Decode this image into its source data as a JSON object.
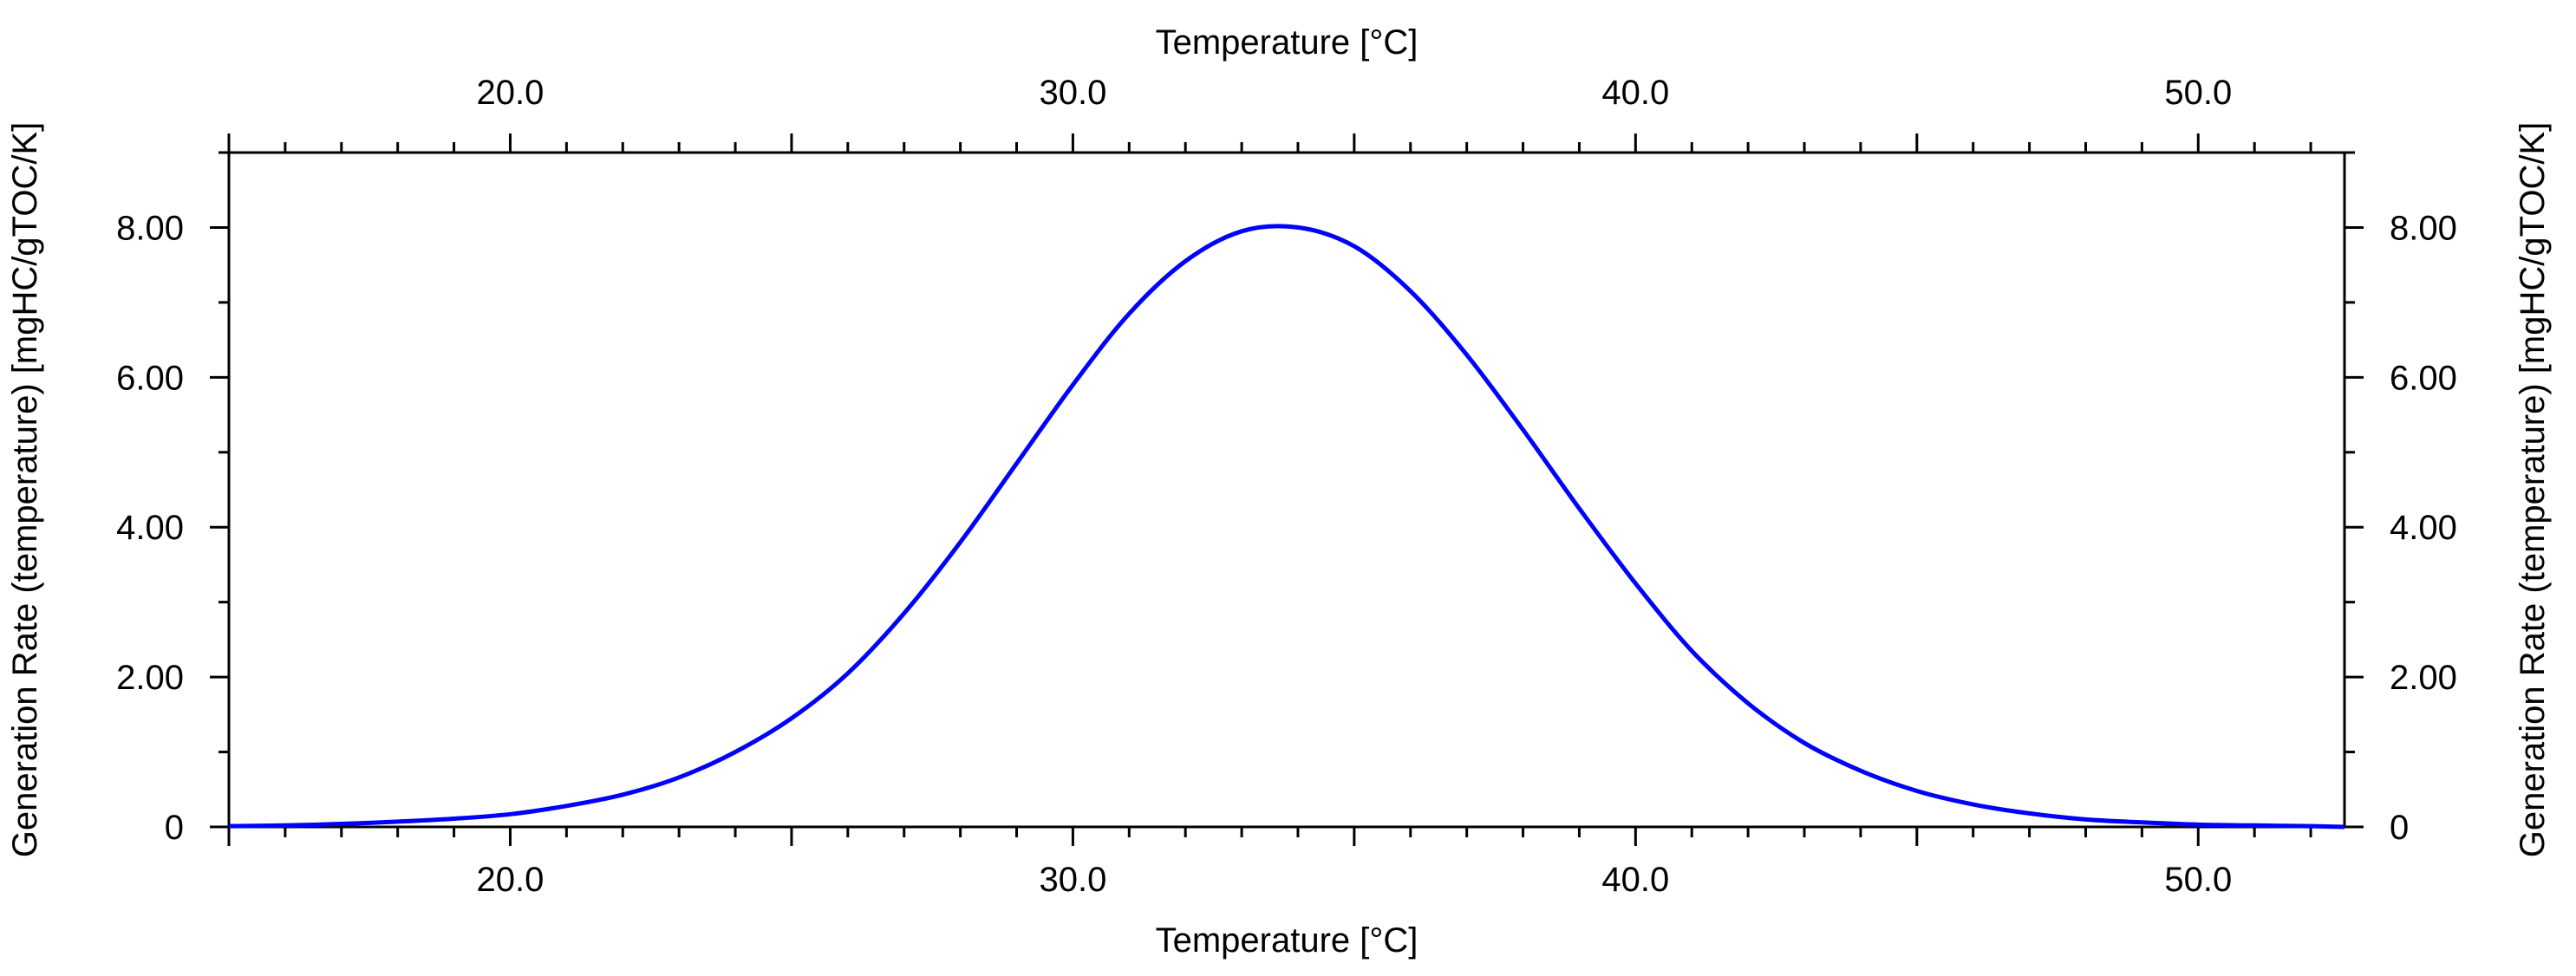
{
  "chart_data": {
    "type": "line",
    "title": "",
    "xlabel_top": "Temperature [°C]",
    "xlabel_bottom": "Temperature [°C]",
    "ylabel_left": "Generation Rate (temperature) [mgHC/gTOC/K]",
    "ylabel_right": "Generation Rate (temperature) [mgHC/gTOC/K]",
    "xlim": [
      15.0,
      52.6
    ],
    "ylim": [
      0,
      9.0
    ],
    "x_ticks": [
      20.0,
      30.0,
      40.0,
      50.0
    ],
    "x_tick_labels": [
      "20.0",
      "30.0",
      "40.0",
      "50.0"
    ],
    "y_ticks": [
      0,
      2,
      4,
      6,
      8
    ],
    "y_tick_labels": [
      "0",
      "2.00",
      "4.00",
      "6.00",
      "8.00"
    ],
    "grid": false,
    "legend": "none",
    "line_color": "#0000ff",
    "series": [
      {
        "x": [
          15.0,
          16.0,
          17.0,
          18.0,
          19.0,
          20.0,
          21.0,
          22.0,
          23.0,
          24.0,
          25.0,
          26.0,
          27.0,
          28.0,
          29.0,
          30.0,
          31.0,
          32.0,
          33.0,
          34.0,
          35.0,
          36.0,
          37.0,
          38.0,
          39.0,
          40.0,
          41.0,
          42.0,
          43.0,
          44.0,
          45.0,
          46.0,
          47.0,
          48.0,
          49.0,
          50.0,
          51.0,
          52.0,
          52.6
        ],
        "y": [
          0.01,
          0.02,
          0.04,
          0.07,
          0.11,
          0.17,
          0.28,
          0.43,
          0.66,
          1.0,
          1.45,
          2.05,
          2.85,
          3.8,
          4.85,
          5.9,
          6.85,
          7.55,
          7.95,
          8.0,
          7.75,
          7.15,
          6.3,
          5.3,
          4.25,
          3.25,
          2.35,
          1.65,
          1.12,
          0.75,
          0.48,
          0.3,
          0.18,
          0.1,
          0.06,
          0.03,
          0.02,
          0.01,
          0.0
        ]
      }
    ]
  }
}
